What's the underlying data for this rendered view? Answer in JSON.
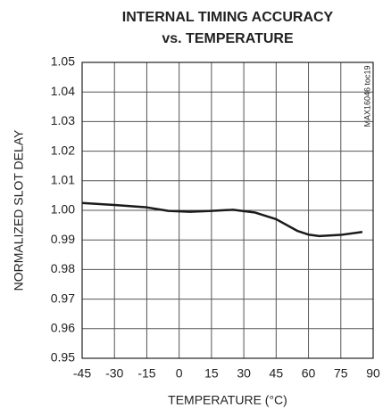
{
  "chart_data": {
    "type": "line",
    "title": "INTERNAL TIMING ACCURACY",
    "subtitle": "vs. TEMPERATURE",
    "xlabel": "TEMPERATURE (°C)",
    "ylabel": "NORMALIZED SLOT DELAY",
    "annotation": "MAX16046 toc19",
    "x": [
      -45,
      -30,
      -15,
      -5,
      5,
      15,
      25,
      35,
      45,
      55,
      60,
      65,
      75,
      85
    ],
    "series": [
      {
        "name": "Normalized slot delay",
        "color": "#1a1a1a",
        "values": [
          1.0025,
          1.0018,
          1.001,
          0.9998,
          0.9995,
          0.9998,
          1.0002,
          0.9993,
          0.997,
          0.993,
          0.9918,
          0.9913,
          0.9917,
          0.9927
        ]
      }
    ],
    "xlim": [
      -45,
      90
    ],
    "xticks": [
      -45,
      -30,
      -15,
      0,
      15,
      30,
      45,
      60,
      75,
      90
    ],
    "ylim": [
      0.95,
      1.05
    ],
    "yticks": [
      0.95,
      0.96,
      0.97,
      0.98,
      0.99,
      {
        "value": 1,
        "label": "1.00"
      },
      1.01,
      1.02,
      1.03,
      1.04,
      1.05
    ],
    "grid": true
  }
}
